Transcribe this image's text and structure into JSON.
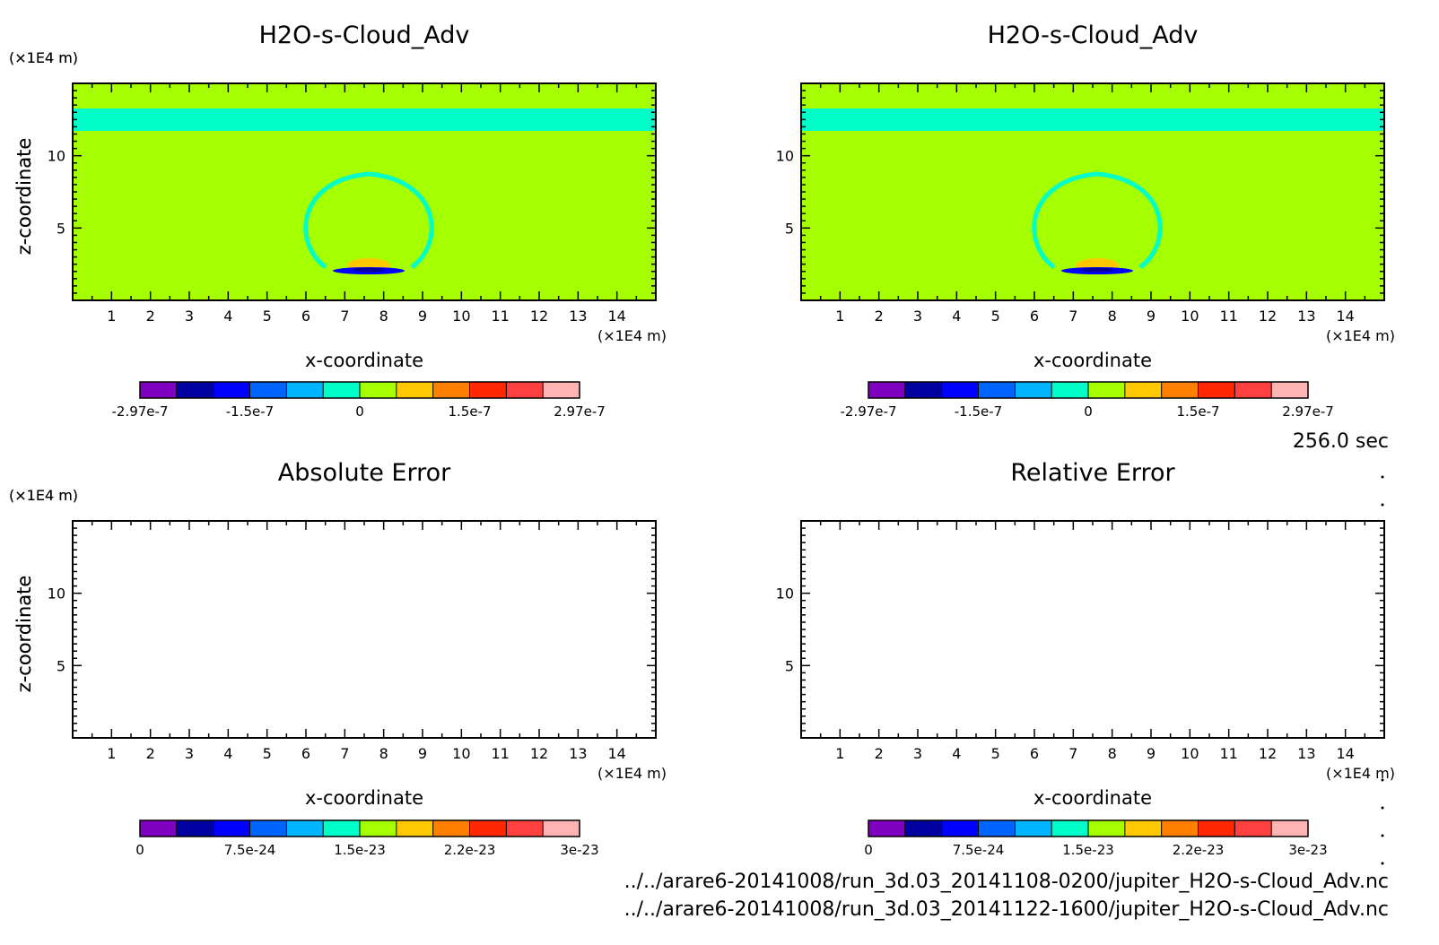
{
  "time_label": "256.0 sec",
  "files": [
    "../../arare6-20141008/run_3d.03_20141108-0200/jupiter_H2O-s-Cloud_Adv.nc",
    "../../arare6-20141008/run_3d.03_20141122-1600/jupiter_H2O-s-Cloud_Adv.nc"
  ],
  "colors": {
    "background_field": "#a6ff00",
    "cyan_band": "#00ffc8",
    "frame": "#000000"
  },
  "chart_data": [
    {
      "type": "heatmap",
      "title": "H2O-s-Cloud_Adv",
      "xlabel": "x-coordinate",
      "ylabel": "z-coordinate",
      "x_unit": "(×1E4 m)",
      "y_unit": "(×1E4 m)",
      "xlim": [
        0,
        15
      ],
      "ylim": [
        0,
        15
      ],
      "x_ticks": [
        1,
        2,
        3,
        4,
        5,
        6,
        7,
        8,
        9,
        10,
        11,
        12,
        13,
        14
      ],
      "y_ticks": [
        5,
        10
      ],
      "field": "filled",
      "colorbar": {
        "colors": [
          "#7f00bf",
          "#0000a0",
          "#0000ff",
          "#0064ff",
          "#00b4ff",
          "#00ffc8",
          "#a6ff00",
          "#ffc800",
          "#ff8000",
          "#ff2800",
          "#ff4040",
          "#ffb4b4"
        ],
        "tick_labels": [
          "-2.97e-7",
          "-1.5e-7",
          "0",
          "1.5e-7",
          "2.97e-7"
        ],
        "tick_positions": [
          0,
          3,
          6,
          9,
          12
        ]
      }
    },
    {
      "type": "heatmap",
      "title": "H2O-s-Cloud_Adv",
      "xlabel": "x-coordinate",
      "ylabel": "z-coordinate",
      "x_unit": "(×1E4 m)",
      "y_unit": "(×1E4 m)",
      "xlim": [
        0,
        15
      ],
      "ylim": [
        0,
        15
      ],
      "x_ticks": [
        1,
        2,
        3,
        4,
        5,
        6,
        7,
        8,
        9,
        10,
        11,
        12,
        13,
        14
      ],
      "y_ticks": [
        5,
        10
      ],
      "field": "filled",
      "colorbar": {
        "colors": [
          "#7f00bf",
          "#0000a0",
          "#0000ff",
          "#0064ff",
          "#00b4ff",
          "#00ffc8",
          "#a6ff00",
          "#ffc800",
          "#ff8000",
          "#ff2800",
          "#ff4040",
          "#ffb4b4"
        ],
        "tick_labels": [
          "-2.97e-7",
          "-1.5e-7",
          "0",
          "1.5e-7",
          "2.97e-7"
        ],
        "tick_positions": [
          0,
          3,
          6,
          9,
          12
        ]
      }
    },
    {
      "type": "heatmap",
      "title": "Absolute Error",
      "xlabel": "x-coordinate",
      "ylabel": "z-coordinate",
      "x_unit": "(×1E4 m)",
      "y_unit": "(×1E4 m)",
      "xlim": [
        0,
        15
      ],
      "ylim": [
        0,
        15
      ],
      "x_ticks": [
        1,
        2,
        3,
        4,
        5,
        6,
        7,
        8,
        9,
        10,
        11,
        12,
        13,
        14
      ],
      "y_ticks": [
        5,
        10
      ],
      "field": "empty",
      "colorbar": {
        "colors": [
          "#7f00bf",
          "#0000a0",
          "#0000ff",
          "#0064ff",
          "#00b4ff",
          "#00ffc8",
          "#a6ff00",
          "#ffc800",
          "#ff8000",
          "#ff2800",
          "#ff4040",
          "#ffb4b4"
        ],
        "tick_labels": [
          "0",
          "7.5e-24",
          "1.5e-23",
          "2.2e-23",
          "3e-23"
        ],
        "tick_positions": [
          0,
          3,
          6,
          9,
          12
        ]
      }
    },
    {
      "type": "heatmap",
      "title": "Relative Error",
      "xlabel": "x-coordinate",
      "ylabel": "z-coordinate",
      "x_unit": "(×1E4 m)",
      "y_unit": "(×1E4 m)",
      "xlim": [
        0,
        15
      ],
      "ylim": [
        0,
        15
      ],
      "x_ticks": [
        1,
        2,
        3,
        4,
        5,
        6,
        7,
        8,
        9,
        10,
        11,
        12,
        13,
        14
      ],
      "y_ticks": [
        5,
        10
      ],
      "field": "empty",
      "colorbar": {
        "colors": [
          "#7f00bf",
          "#0000a0",
          "#0000ff",
          "#0064ff",
          "#00b4ff",
          "#00ffc8",
          "#a6ff00",
          "#ffc800",
          "#ff8000",
          "#ff2800",
          "#ff4040",
          "#ffb4b4"
        ],
        "tick_labels": [
          "0",
          "7.5e-24",
          "1.5e-23",
          "2.2e-23",
          "3e-23"
        ],
        "tick_positions": [
          0,
          3,
          6,
          9,
          12
        ]
      }
    }
  ]
}
